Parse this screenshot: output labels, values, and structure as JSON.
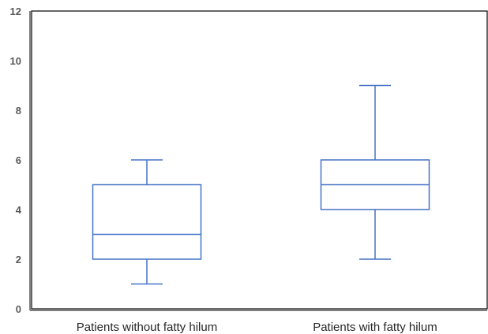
{
  "chart_data": {
    "type": "boxplot",
    "categories": [
      "Patients without fatty hilum",
      "Patients with fatty hilum"
    ],
    "boxes": [
      {
        "min": 1,
        "q1": 2,
        "median": 3,
        "q3": 5,
        "max": 6
      },
      {
        "min": 2,
        "q1": 4,
        "median": 5,
        "q3": 6,
        "max": 9
      }
    ],
    "ylim": [
      0,
      12
    ],
    "yticks": [
      "0",
      "2",
      "4",
      "6",
      "8",
      "10",
      "12"
    ],
    "grid": false,
    "colors": {
      "box": "#4472c4",
      "axis": "#7f7f7f",
      "frame": "#000000"
    }
  }
}
